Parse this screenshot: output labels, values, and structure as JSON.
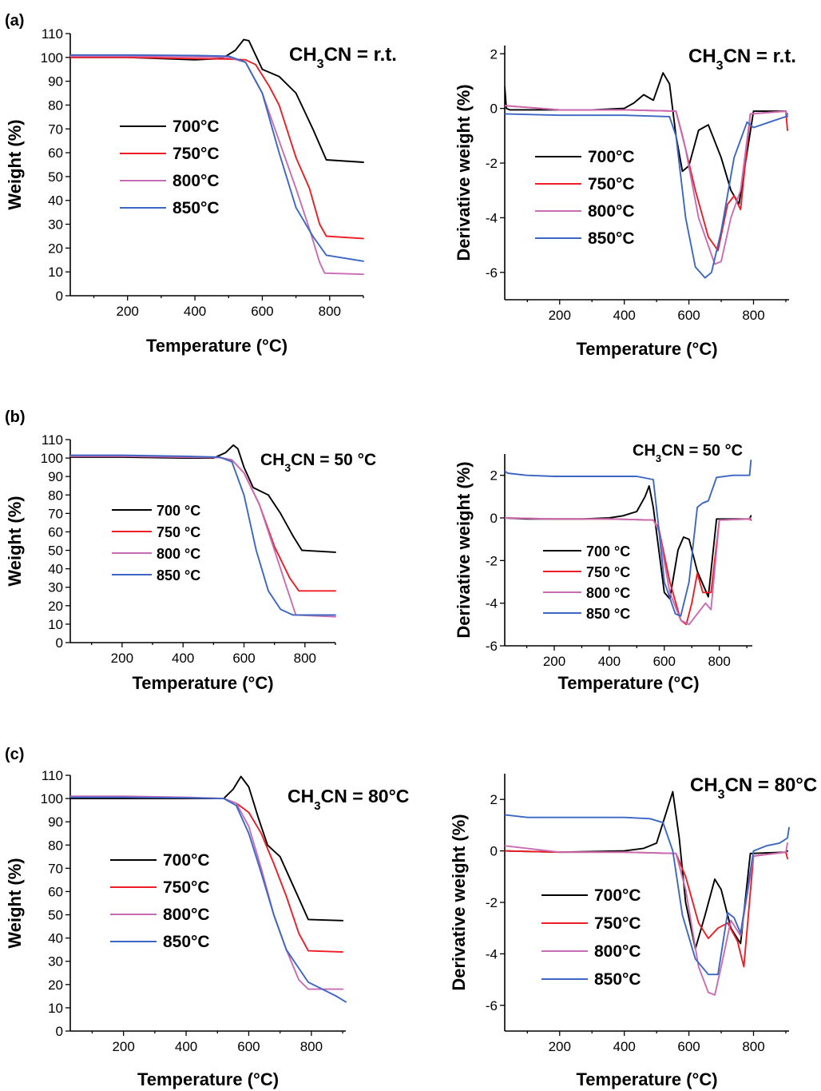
{
  "panel_labels": [
    "(a)",
    "(b)",
    "(c)"
  ],
  "colors": {
    "700": "#000000",
    "750": "#ee1c24",
    "800": "#c86cb4",
    "850": "#3c66c4"
  },
  "chart_data": [
    {
      "type": "line",
      "panel": "(a)",
      "xlabel": "Temperature (°C)",
      "ylabel": "Weight (%)",
      "annotation": "CH3CN = r.t.",
      "xlim": [
        30,
        900
      ],
      "ylim": [
        0,
        110
      ],
      "xticks": [
        200,
        400,
        600,
        800
      ],
      "yticks": [
        0,
        10,
        20,
        30,
        40,
        50,
        60,
        70,
        80,
        90,
        100,
        110
      ],
      "series": [
        {
          "name": "700°C",
          "color": "#000000",
          "x": [
            30,
            200,
            300,
            400,
            480,
            520,
            545,
            560,
            580,
            600,
            650,
            700,
            750,
            790,
            900
          ],
          "y": [
            100,
            100,
            99.5,
            99,
            99.5,
            103,
            107.5,
            107,
            101,
            95,
            92,
            85,
            70,
            57,
            56
          ]
        },
        {
          "name": "750°C",
          "color": "#ee1c24",
          "x": [
            30,
            200,
            400,
            500,
            550,
            580,
            620,
            650,
            700,
            740,
            770,
            790,
            900
          ],
          "y": [
            100,
            100,
            99.5,
            99.3,
            99,
            97,
            88,
            80,
            58,
            45,
            30,
            25,
            24
          ]
        },
        {
          "name": "800°C",
          "color": "#c86cb4",
          "x": [
            30,
            200,
            400,
            500,
            550,
            600,
            650,
            700,
            740,
            770,
            785,
            900
          ],
          "y": [
            100.5,
            100.5,
            100.3,
            100,
            98,
            85,
            65,
            45,
            28,
            14,
            9.5,
            9
          ]
        },
        {
          "name": "850°C",
          "color": "#3c66c4",
          "x": [
            30,
            200,
            400,
            500,
            550,
            600,
            650,
            700,
            750,
            790,
            900
          ],
          "y": [
            101,
            101,
            100.8,
            100.5,
            98,
            85,
            60,
            37,
            25,
            17,
            14.5
          ]
        }
      ]
    },
    {
      "type": "line",
      "panel": "(a)",
      "xlabel": "Temperature (°C)",
      "ylabel": "Derivative weight (%)",
      "annotation": "CH3CN = r.t.",
      "xlim": [
        30,
        910
      ],
      "ylim": [
        -7,
        2.3
      ],
      "xticks": [
        200,
        400,
        600,
        800
      ],
      "yticks": [
        -6,
        -4,
        -2,
        0,
        2
      ],
      "series": [
        {
          "name": "700°C",
          "color": "#000000",
          "x": [
            30,
            35,
            45,
            100,
            200,
            300,
            400,
            430,
            460,
            490,
            520,
            540,
            560,
            580,
            600,
            630,
            660,
            700,
            730,
            755,
            800,
            900,
            905
          ],
          "y": [
            0.8,
            0,
            -0.05,
            -0.05,
            -0.05,
            -0.05,
            0,
            0.2,
            0.5,
            0.3,
            1.3,
            0.9,
            -1.0,
            -2.3,
            -2.1,
            -0.8,
            -0.6,
            -1.8,
            -3.0,
            -3.5,
            -0.1,
            -0.1,
            -0.3
          ]
        },
        {
          "name": "750°C",
          "color": "#ee1c24",
          "x": [
            30,
            200,
            400,
            560,
            580,
            620,
            660,
            690,
            720,
            740,
            760,
            790,
            900,
            905
          ],
          "y": [
            0.1,
            -0.05,
            -0.05,
            -0.1,
            -1.0,
            -3.0,
            -4.7,
            -5.2,
            -3.5,
            -3.2,
            -3.7,
            -0.2,
            -0.1,
            -0.8
          ]
        },
        {
          "name": "800°C",
          "color": "#c86cb4",
          "x": [
            30,
            200,
            400,
            560,
            590,
            630,
            680,
            700,
            730,
            760,
            790,
            900,
            905
          ],
          "y": [
            0.1,
            -0.05,
            -0.05,
            -0.1,
            -1.5,
            -4.0,
            -5.7,
            -5.6,
            -4.0,
            -3.0,
            -0.2,
            -0.1,
            -0.3
          ]
        },
        {
          "name": "850°C",
          "color": "#3c66c4",
          "x": [
            30,
            200,
            400,
            540,
            560,
            590,
            620,
            650,
            670,
            700,
            740,
            780,
            800,
            850,
            900,
            905
          ],
          "y": [
            -0.2,
            -0.25,
            -0.25,
            -0.3,
            -1.0,
            -4.0,
            -5.8,
            -6.2,
            -6.0,
            -4.5,
            -1.8,
            -0.5,
            -0.7,
            -0.5,
            -0.3,
            -0.2
          ]
        }
      ]
    },
    {
      "type": "line",
      "panel": "(b)",
      "xlabel": "Temperature (°C)",
      "ylabel": "Weight (%)",
      "annotation": "CH3CN = 50 °C",
      "xlim": [
        30,
        900
      ],
      "ylim": [
        0,
        110
      ],
      "xticks": [
        200,
        400,
        600,
        800
      ],
      "yticks": [
        0,
        10,
        20,
        30,
        40,
        50,
        60,
        70,
        80,
        90,
        100,
        110
      ],
      "series": [
        {
          "name": "700 °C",
          "color": "#000000",
          "x": [
            30,
            200,
            400,
            500,
            540,
            565,
            580,
            600,
            630,
            680,
            720,
            760,
            790,
            900
          ],
          "y": [
            100.5,
            100.5,
            100,
            100,
            103,
            107,
            105,
            95,
            84,
            80,
            70,
            58,
            50,
            49
          ]
        },
        {
          "name": "750 °C",
          "color": "#ee1c24",
          "x": [
            30,
            200,
            400,
            520,
            560,
            600,
            650,
            700,
            750,
            780,
            900
          ],
          "y": [
            101,
            101,
            100.5,
            100.3,
            99,
            92,
            75,
            52,
            35,
            28,
            28
          ]
        },
        {
          "name": "800 °C",
          "color": "#c86cb4",
          "x": [
            30,
            200,
            400,
            520,
            560,
            600,
            650,
            700,
            740,
            770,
            900
          ],
          "y": [
            101,
            101,
            100.5,
            100.3,
            99,
            92,
            75,
            50,
            30,
            15,
            14
          ]
        },
        {
          "name": "850 °C",
          "color": "#3c66c4",
          "x": [
            30,
            200,
            400,
            520,
            560,
            600,
            640,
            680,
            720,
            760,
            900
          ],
          "y": [
            101.5,
            101.5,
            101,
            100.5,
            98,
            80,
            50,
            28,
            18,
            15,
            15
          ]
        }
      ]
    },
    {
      "type": "line",
      "panel": "(b)",
      "xlabel": "Temperature (°C)",
      "ylabel": "Derivative weight (%)",
      "annotation": "CH3CN = 50 °C",
      "xlim": [
        20,
        920
      ],
      "ylim": [
        -6,
        3
      ],
      "xticks": [
        200,
        400,
        600,
        800
      ],
      "yticks": [
        -6,
        -4,
        -2,
        0,
        2
      ],
      "series": [
        {
          "name": "700 °C",
          "color": "#000000",
          "x": [
            20,
            100,
            200,
            300,
            400,
            450,
            500,
            530,
            545,
            560,
            580,
            600,
            620,
            650,
            670,
            690,
            720,
            760,
            790,
            910,
            915
          ],
          "y": [
            0,
            -0.05,
            -0.05,
            -0.05,
            0,
            0.1,
            0.3,
            1.0,
            1.5,
            0.5,
            -1.5,
            -3.5,
            -3.8,
            -1.5,
            -0.9,
            -1.0,
            -2.5,
            -3.7,
            -0.05,
            -0.05,
            0.1
          ]
        },
        {
          "name": "750 °C",
          "color": "#ee1c24",
          "x": [
            20,
            200,
            400,
            560,
            580,
            620,
            660,
            680,
            700,
            720,
            740,
            770,
            800,
            910,
            915
          ],
          "y": [
            0,
            -0.05,
            -0.05,
            -0.1,
            -0.5,
            -3.0,
            -4.8,
            -5.0,
            -4.0,
            -2.6,
            -3.5,
            -3.5,
            -0.1,
            -0.05,
            -0.1
          ]
        },
        {
          "name": "800 °C",
          "color": "#c86cb4",
          "x": [
            20,
            200,
            400,
            560,
            580,
            620,
            660,
            690,
            720,
            750,
            770,
            800,
            910,
            915
          ],
          "y": [
            0,
            -0.05,
            -0.05,
            -0.1,
            -0.6,
            -3.5,
            -4.8,
            -5.0,
            -4.5,
            -4.0,
            -4.3,
            -0.1,
            -0.05,
            0
          ]
        },
        {
          "name": "850 °C",
          "color": "#3c66c4",
          "x": [
            20,
            30,
            100,
            200,
            300,
            400,
            500,
            560,
            580,
            600,
            640,
            660,
            690,
            720,
            740,
            760,
            790,
            850,
            910,
            915
          ],
          "y": [
            2.2,
            2.1,
            2.0,
            1.95,
            1.95,
            1.95,
            1.95,
            1.8,
            -0.5,
            -3.0,
            -4.5,
            -4.6,
            -3.0,
            0.5,
            0.7,
            0.8,
            1.9,
            2.0,
            2.0,
            2.7
          ]
        }
      ]
    },
    {
      "type": "line",
      "panel": "(c)",
      "xlabel": "Temperature (°C)",
      "ylabel": "Weight (%)",
      "annotation": "CH3CN = 80°C",
      "xlim": [
        30,
        910
      ],
      "ylim": [
        0,
        110
      ],
      "xticks": [
        200,
        400,
        600,
        800
      ],
      "yticks": [
        0,
        10,
        20,
        30,
        40,
        50,
        60,
        70,
        80,
        90,
        100,
        110
      ],
      "series": [
        {
          "name": "700°C",
          "color": "#000000",
          "x": [
            30,
            200,
            400,
            520,
            550,
            575,
            600,
            630,
            660,
            700,
            740,
            790,
            900
          ],
          "y": [
            100,
            100,
            100,
            100,
            104,
            109.5,
            105,
            92,
            80,
            75,
            63,
            48,
            47.5
          ]
        },
        {
          "name": "750°C",
          "color": "#ee1c24",
          "x": [
            30,
            200,
            400,
            520,
            560,
            600,
            640,
            680,
            720,
            760,
            790,
            900
          ],
          "y": [
            100.5,
            100.5,
            100.3,
            100,
            98,
            94,
            85,
            72,
            58,
            42,
            34.5,
            34
          ]
        },
        {
          "name": "800°C",
          "color": "#c86cb4",
          "x": [
            30,
            200,
            400,
            520,
            560,
            600,
            640,
            680,
            720,
            760,
            790,
            900
          ],
          "y": [
            101,
            101,
            100.5,
            100,
            98,
            88,
            70,
            50,
            35,
            22,
            18,
            18
          ]
        },
        {
          "name": "850°C",
          "color": "#3c66c4",
          "x": [
            30,
            200,
            400,
            520,
            560,
            600,
            640,
            680,
            720,
            760,
            790,
            820,
            880,
            910
          ],
          "y": [
            100.5,
            100.5,
            100.3,
            100,
            97,
            85,
            68,
            50,
            35,
            27,
            21,
            19,
            15,
            12.5
          ]
        }
      ]
    },
    {
      "type": "line",
      "panel": "(c)",
      "xlabel": "Temperature (°C)",
      "ylabel": "Derivative weight (%)",
      "annotation": "CH3CN = 80°C",
      "xlim": [
        30,
        910
      ],
      "ylim": [
        -7,
        3
      ],
      "xticks": [
        200,
        400,
        600,
        800
      ],
      "yticks": [
        -6,
        -4,
        -2,
        0,
        2
      ],
      "series": [
        {
          "name": "700°C",
          "color": "#000000",
          "x": [
            30,
            200,
            400,
            460,
            500,
            530,
            550,
            570,
            590,
            620,
            650,
            680,
            700,
            730,
            760,
            790,
            900,
            905
          ],
          "y": [
            0,
            -0.05,
            0,
            0.1,
            0.3,
            1.5,
            2.3,
            0.5,
            -2.0,
            -3.8,
            -2.5,
            -1.1,
            -1.5,
            -3.0,
            -3.6,
            -0.1,
            -0.05,
            0
          ]
        },
        {
          "name": "750°C",
          "color": "#ee1c24",
          "x": [
            30,
            200,
            400,
            560,
            590,
            630,
            660,
            690,
            720,
            750,
            770,
            800,
            900,
            905
          ],
          "y": [
            0,
            -0.05,
            -0.05,
            -0.1,
            -1.0,
            -2.8,
            -3.4,
            -3.0,
            -2.8,
            -3.5,
            -4.5,
            -0.2,
            -0.05,
            -0.3
          ]
        },
        {
          "name": "800°C",
          "color": "#c86cb4",
          "x": [
            30,
            200,
            400,
            560,
            590,
            630,
            660,
            680,
            700,
            730,
            760,
            800,
            900,
            905
          ],
          "y": [
            0.2,
            -0.05,
            -0.05,
            -0.1,
            -1.5,
            -4.5,
            -5.5,
            -5.6,
            -4.5,
            -2.7,
            -3.3,
            -0.2,
            -0.05,
            0.3
          ]
        },
        {
          "name": "850°C",
          "color": "#3c66c4",
          "x": [
            30,
            100,
            200,
            300,
            400,
            480,
            520,
            550,
            580,
            620,
            660,
            690,
            720,
            740,
            760,
            800,
            840,
            880,
            905,
            910
          ],
          "y": [
            1.4,
            1.3,
            1.3,
            1.3,
            1.3,
            1.25,
            1.1,
            0,
            -2.5,
            -4.2,
            -4.8,
            -4.8,
            -2.4,
            -2.6,
            -3.2,
            0.0,
            0.2,
            0.3,
            0.5,
            0.9
          ]
        }
      ]
    }
  ]
}
